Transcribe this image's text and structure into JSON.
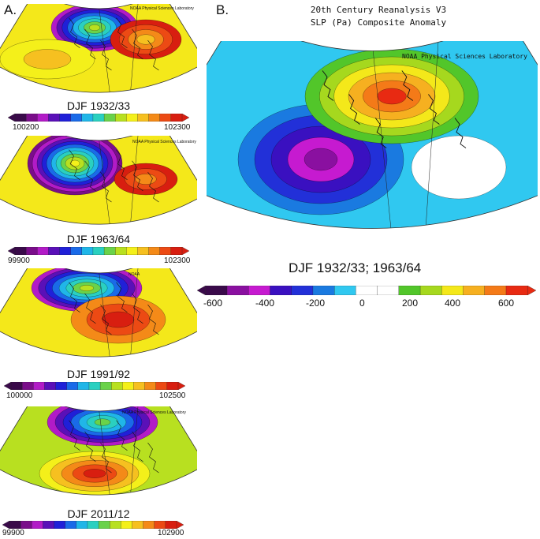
{
  "panel_a": {
    "letter": "A.",
    "maps": [
      {
        "caption": "DJF 1932/33",
        "credit": "NOAA Physical Sciences Laboratory",
        "scale_min": "100200",
        "scale_max": "102300"
      },
      {
        "caption": "DJF 1963/64",
        "credit": "NOAA Physical Sciences Laboratory",
        "scale_min": "99900",
        "scale_max": "102300"
      },
      {
        "caption": "DJF 1991/92",
        "credit": "NOAA",
        "scale_min": "100000",
        "scale_max": "102500"
      },
      {
        "caption": "DJF 2011/12",
        "credit": "NOAA Physical Sciences Laboratory",
        "scale_min": "99900",
        "scale_max": "102900"
      }
    ]
  },
  "panel_b": {
    "letter": "B.",
    "title_line1": "20th Century Reanalysis V3",
    "title_line2": "SLP (Pa) Composite Anomaly",
    "credit": "NOAA Physical Sciences Laboratory",
    "caption": "DJF 1932/33; 1963/64",
    "ticks": [
      "-600",
      "-400",
      "-200",
      "0",
      "200",
      "400",
      "600"
    ]
  },
  "colors": {
    "rainbow": [
      "#3a0a4a",
      "#7a0d8a",
      "#b21bc7",
      "#5a10b8",
      "#2020d8",
      "#1a6ae8",
      "#20b6e8",
      "#2ad0c0",
      "#6ad24a",
      "#b8e020",
      "#f4f01a",
      "#f6c020",
      "#f48a18",
      "#ec4a14",
      "#d81e10"
    ],
    "anomaly": [
      "#3a0a4a",
      "#8a10a0",
      "#c61ad0",
      "#3a10c0",
      "#2230d8",
      "#1a7ae0",
      "#30c8f0",
      "#ffffff",
      "#ffffff",
      "#52c62a",
      "#a6d81e",
      "#f4e81a",
      "#f6b020",
      "#f47a18",
      "#e82a12"
    ]
  }
}
